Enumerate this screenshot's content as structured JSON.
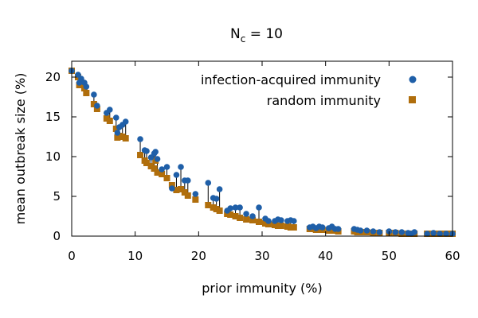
{
  "chart_data": {
    "type": "scatter",
    "title": {
      "base": "N",
      "subscript": "c",
      "suffix": " = 10"
    },
    "xlabel": "prior immunity (%)",
    "ylabel": "mean outbreak size (%)",
    "xlim": [
      0,
      60
    ],
    "ylim": [
      0,
      22
    ],
    "xticks": [
      0,
      10,
      20,
      30,
      40,
      50,
      60
    ],
    "yticks": [
      0,
      5,
      10,
      15,
      20
    ],
    "legend_position": "top-right",
    "connectors": true,
    "series": [
      {
        "name": "infection-acquired immunity",
        "marker": "circle",
        "color": "#1f5fa8",
        "points": [
          [
            0,
            20.8
          ],
          [
            1,
            20.3
          ],
          [
            1.2,
            19.3
          ],
          [
            1.5,
            19.8
          ],
          [
            2,
            19.3
          ],
          [
            2.3,
            18.8
          ],
          [
            3.5,
            17.8
          ],
          [
            4,
            16.4
          ],
          [
            5.5,
            15.5
          ],
          [
            6,
            15.9
          ],
          [
            7,
            14.9
          ],
          [
            7.2,
            13.0
          ],
          [
            7.5,
            13.7
          ],
          [
            8,
            14.0
          ],
          [
            8.5,
            14.4
          ],
          [
            10.8,
            12.2
          ],
          [
            11.5,
            10.8
          ],
          [
            11.8,
            10.7
          ],
          [
            12.5,
            9.9
          ],
          [
            13,
            10.4
          ],
          [
            13.2,
            10.6
          ],
          [
            13.5,
            9.7
          ],
          [
            14.2,
            8.4
          ],
          [
            15,
            8.7
          ],
          [
            15.8,
            6.0
          ],
          [
            16.5,
            7.7
          ],
          [
            17.2,
            8.7
          ],
          [
            17.8,
            7.0
          ],
          [
            18.3,
            7.0
          ],
          [
            19.5,
            5.3
          ],
          [
            21.5,
            6.7
          ],
          [
            22.3,
            4.8
          ],
          [
            22.8,
            4.7
          ],
          [
            23.3,
            5.9
          ],
          [
            24.5,
            3.2
          ],
          [
            25,
            3.5
          ],
          [
            25.8,
            3.6
          ],
          [
            26.5,
            3.6
          ],
          [
            27.5,
            2.8
          ],
          [
            28.5,
            2.5
          ],
          [
            29.5,
            3.6
          ],
          [
            30.5,
            2.2
          ],
          [
            31,
            1.9
          ],
          [
            32,
            1.9
          ],
          [
            32.5,
            2.1
          ],
          [
            33,
            2.0
          ],
          [
            34,
            1.9
          ],
          [
            34.5,
            2.0
          ],
          [
            35,
            1.9
          ],
          [
            37.5,
            1.1
          ],
          [
            38,
            1.2
          ],
          [
            38.5,
            1.0
          ],
          [
            39,
            1.2
          ],
          [
            39.5,
            1.1
          ],
          [
            40.5,
            1.0
          ],
          [
            41,
            1.2
          ],
          [
            41.5,
            0.9
          ],
          [
            42,
            0.9
          ],
          [
            44.5,
            0.9
          ],
          [
            45,
            0.8
          ],
          [
            45.5,
            0.7
          ],
          [
            46.5,
            0.7
          ],
          [
            47.5,
            0.6
          ],
          [
            48.5,
            0.5
          ],
          [
            50,
            0.6
          ],
          [
            51,
            0.5
          ],
          [
            52,
            0.5
          ],
          [
            53,
            0.4
          ],
          [
            53.5,
            0.3
          ],
          [
            54,
            0.5
          ],
          [
            56,
            0.3
          ],
          [
            57,
            0.4
          ],
          [
            58,
            0.3
          ],
          [
            59,
            0.3
          ],
          [
            60,
            0.3
          ]
        ]
      },
      {
        "name": "random immunity",
        "marker": "square",
        "color": "#b06e0c",
        "points": [
          [
            0,
            20.8
          ],
          [
            1,
            20.0
          ],
          [
            1.2,
            19.0
          ],
          [
            1.5,
            19.3
          ],
          [
            2,
            18.6
          ],
          [
            2.3,
            18.0
          ],
          [
            3.5,
            16.6
          ],
          [
            4,
            16.0
          ],
          [
            5.5,
            14.8
          ],
          [
            6,
            14.5
          ],
          [
            7,
            13.5
          ],
          [
            7.2,
            12.4
          ],
          [
            7.5,
            12.6
          ],
          [
            8,
            12.5
          ],
          [
            8.5,
            12.3
          ],
          [
            10.8,
            10.2
          ],
          [
            11.5,
            9.5
          ],
          [
            11.8,
            9.2
          ],
          [
            12.5,
            8.8
          ],
          [
            13,
            8.5
          ],
          [
            13.2,
            9.5
          ],
          [
            13.5,
            8.0
          ],
          [
            14.2,
            7.8
          ],
          [
            15,
            7.3
          ],
          [
            15.8,
            6.4
          ],
          [
            16.5,
            5.8
          ],
          [
            17.2,
            5.9
          ],
          [
            17.8,
            5.5
          ],
          [
            18.3,
            5.1
          ],
          [
            19.5,
            4.6
          ],
          [
            21.5,
            3.9
          ],
          [
            22.3,
            3.6
          ],
          [
            22.8,
            3.4
          ],
          [
            23.3,
            3.2
          ],
          [
            24.5,
            2.8
          ],
          [
            25,
            2.7
          ],
          [
            25.8,
            2.5
          ],
          [
            26.5,
            2.3
          ],
          [
            27.5,
            2.1
          ],
          [
            28.5,
            2.0
          ],
          [
            29.5,
            1.8
          ],
          [
            30.5,
            1.6
          ],
          [
            31,
            1.5
          ],
          [
            32,
            1.4
          ],
          [
            32.5,
            1.3
          ],
          [
            33,
            1.3
          ],
          [
            34,
            1.2
          ],
          [
            34.5,
            1.1
          ],
          [
            35,
            1.1
          ],
          [
            37.5,
            0.9
          ],
          [
            38,
            0.9
          ],
          [
            38.5,
            0.8
          ],
          [
            39,
            0.8
          ],
          [
            39.5,
            0.8
          ],
          [
            40.5,
            0.7
          ],
          [
            41,
            0.7
          ],
          [
            41.5,
            0.7
          ],
          [
            42,
            0.6
          ],
          [
            44.5,
            0.6
          ],
          [
            45,
            0.5
          ],
          [
            45.5,
            0.5
          ],
          [
            46.5,
            0.5
          ],
          [
            47.5,
            0.4
          ],
          [
            48.5,
            0.4
          ],
          [
            50,
            0.4
          ],
          [
            51,
            0.4
          ],
          [
            52,
            0.3
          ],
          [
            53,
            0.3
          ],
          [
            53.5,
            0.3
          ],
          [
            54,
            0.3
          ],
          [
            56,
            0.3
          ],
          [
            57,
            0.3
          ],
          [
            58,
            0.3
          ],
          [
            59,
            0.3
          ],
          [
            60,
            0.3
          ]
        ]
      }
    ]
  }
}
